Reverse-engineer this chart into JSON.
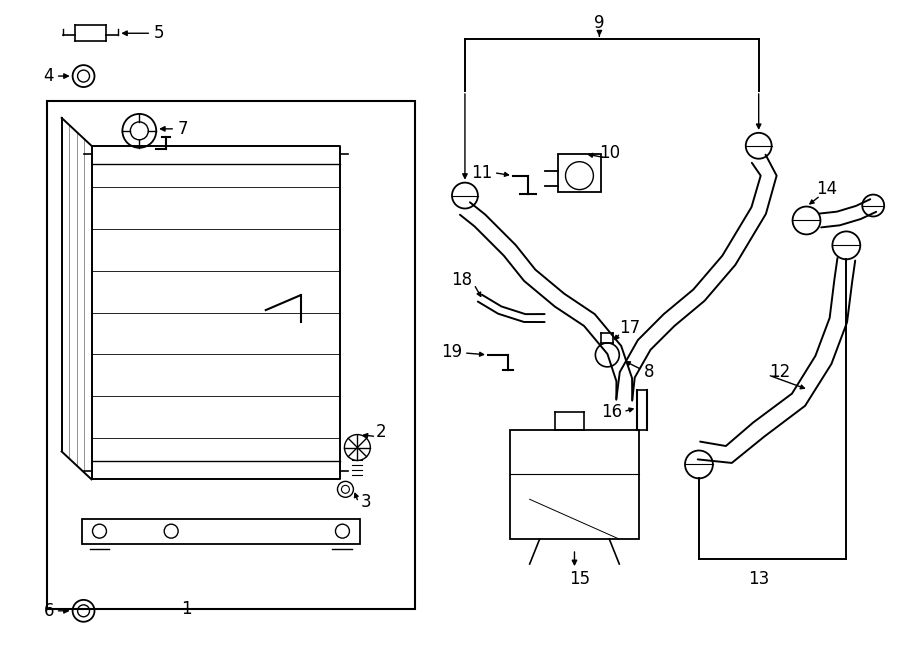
{
  "bg_color": "#ffffff",
  "line_color": "#000000",
  "fig_width": 9.0,
  "fig_height": 6.61,
  "dpi": 100,
  "label_fontsize": 12
}
